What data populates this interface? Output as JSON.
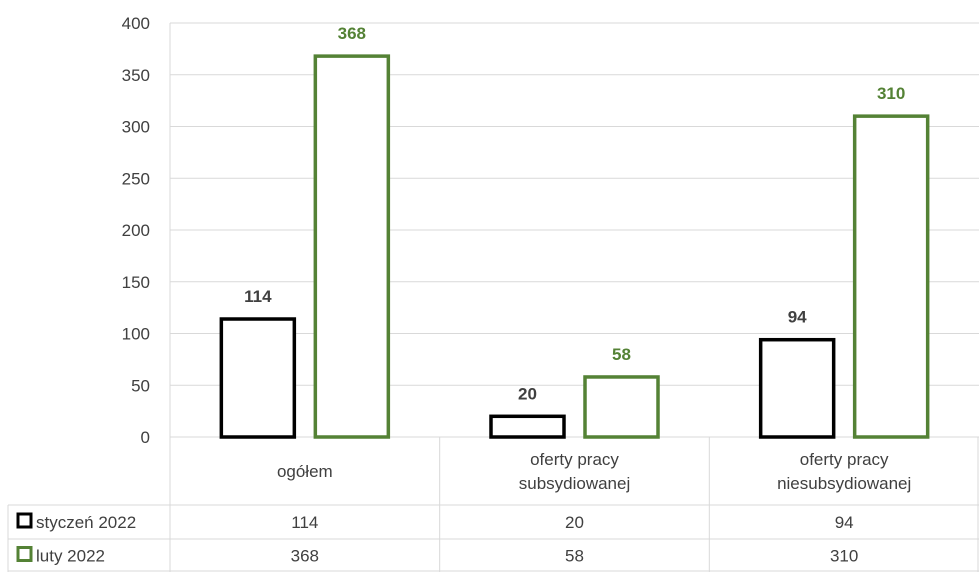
{
  "chart_data": {
    "type": "bar",
    "categories": [
      [
        "ogółem"
      ],
      [
        "oferty pracy",
        "subsydiowanej"
      ],
      [
        "oferty pracy",
        "niesubsydiowanej"
      ]
    ],
    "series": [
      {
        "name": "styczeń 2022",
        "values": [
          114,
          20,
          94
        ],
        "color": "#000000"
      },
      {
        "name": "luty 2022",
        "values": [
          368,
          58,
          310
        ],
        "color": "#548235"
      }
    ],
    "ylim": [
      0,
      400
    ],
    "yticks": [
      0,
      50,
      100,
      150,
      200,
      250,
      300,
      350,
      400
    ],
    "grid": true,
    "data_labels": true,
    "legend": "data-table",
    "data_table": true
  }
}
